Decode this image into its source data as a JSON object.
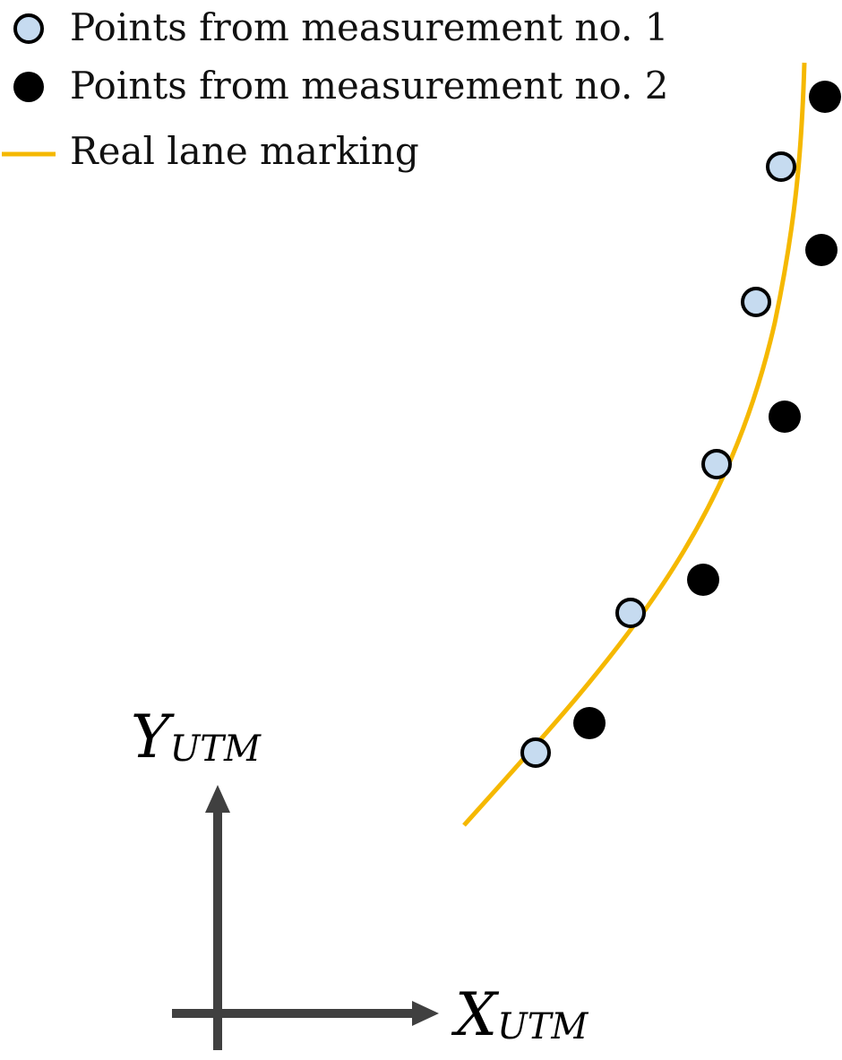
{
  "legend": {
    "items": [
      {
        "label": "Points from measurement no. 1",
        "marker": "circle-open",
        "fill": "#c6dbf0",
        "stroke": "#000000"
      },
      {
        "label": "Points from measurement no. 2",
        "marker": "circle-filled",
        "fill": "#000000"
      },
      {
        "label": "Real lane marking",
        "marker": "line",
        "color": "#f5b800"
      }
    ]
  },
  "axes": {
    "x": {
      "main": "X",
      "sub": "UTM"
    },
    "y": {
      "main": "Y",
      "sub": "UTM"
    },
    "color": "#404040"
  },
  "lane": {
    "color": "#f5b800"
  }
}
